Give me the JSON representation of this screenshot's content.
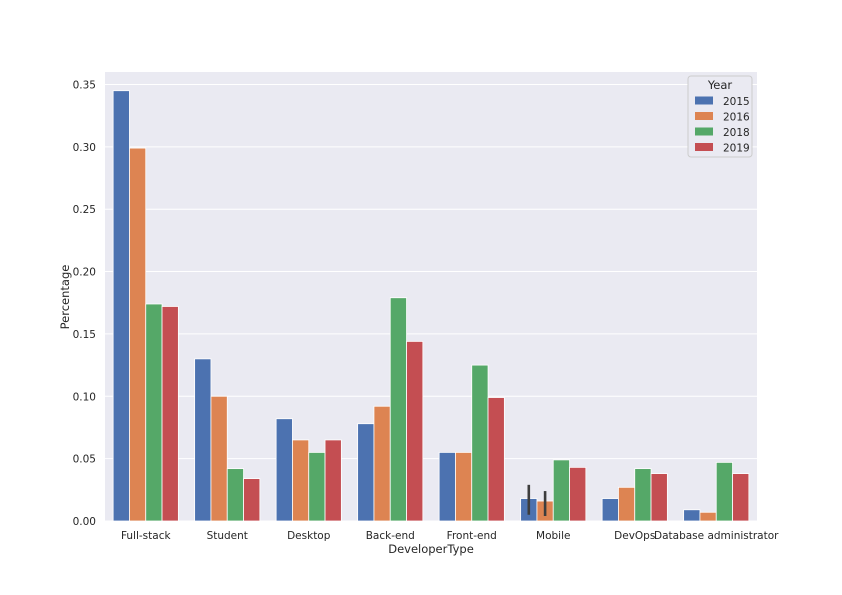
{
  "chart_data": {
    "type": "bar",
    "title": "",
    "xlabel": "DeveloperType",
    "ylabel": "Percentage",
    "ylim": [
      0,
      0.36
    ],
    "yticks": [
      "0.00",
      "0.05",
      "0.10",
      "0.15",
      "0.20",
      "0.25",
      "0.30",
      "0.35"
    ],
    "grid": true,
    "legend": {
      "title": "Year",
      "placement": "top-right"
    },
    "categories": [
      "Full-stack",
      "Student",
      "Desktop",
      "Back-end",
      "Front-end",
      "Mobile",
      "DevOps",
      "Database administrator"
    ],
    "series": [
      {
        "name": "2015",
        "color": "#4c72b0",
        "values": [
          0.345,
          0.13,
          0.082,
          0.078,
          0.055,
          0.018,
          0.018,
          0.009
        ]
      },
      {
        "name": "2016",
        "color": "#dd8452",
        "values": [
          0.299,
          0.1,
          0.065,
          0.092,
          0.055,
          0.016,
          0.027,
          0.007
        ]
      },
      {
        "name": "2018",
        "color": "#55a868",
        "values": [
          0.174,
          0.042,
          0.055,
          0.179,
          0.125,
          0.049,
          0.042,
          0.047
        ]
      },
      {
        "name": "2019",
        "color": "#c44e52",
        "values": [
          0.172,
          0.034,
          0.065,
          0.144,
          0.099,
          0.043,
          0.038,
          0.038
        ]
      }
    ],
    "error_bars": [
      {
        "category": "Mobile",
        "series": "2015",
        "low": 0.005,
        "high": 0.029
      },
      {
        "category": "Mobile",
        "series": "2016",
        "low": 0.004,
        "high": 0.024
      }
    ]
  }
}
